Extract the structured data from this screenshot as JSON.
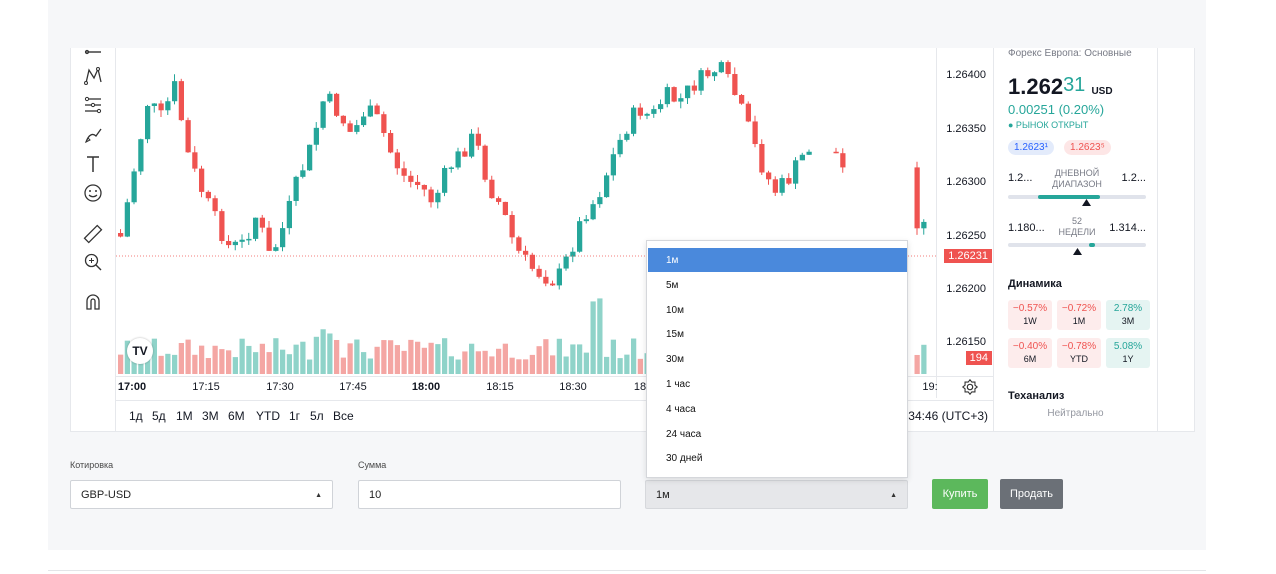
{
  "toolbar": {
    "icons": [
      "line-tool-icon",
      "pattern-tool-icon",
      "fib-tool-icon",
      "brush-tool-icon",
      "text-tool-icon",
      "emoji-tool-icon",
      "ruler-tool-icon",
      "zoom-in-icon",
      "magnet-icon"
    ]
  },
  "price_axis": {
    "labels": [
      "1.26400",
      "1.26350",
      "1.26300",
      "1.26250",
      "1.26200",
      "1.26150"
    ],
    "current_price_tag": "1.26231",
    "volume_tag": "194"
  },
  "time_axis": {
    "labels": [
      "17:00",
      "17:15",
      "17:30",
      "17:45",
      "18:00",
      "18:15",
      "18:30",
      "18",
      "19:"
    ]
  },
  "range_bar": {
    "buttons": [
      "1д",
      "5д",
      "1М",
      "3М",
      "6М",
      "YTD",
      "1г",
      "5л",
      "Все"
    ],
    "clock": "34:46 (UTC+3)"
  },
  "tv_logo": "TV",
  "side_panel": {
    "exchange": "Форекс Европа: Основные",
    "price_main": "1.262",
    "price_hi": "31",
    "currency": "USD",
    "change": "0.00251 (0.20%)",
    "market_status": "● РЫНОК ОТКРЫТ",
    "bid": "1.2623¹",
    "ask": "1.2623⁵",
    "daily_low": "1.2...",
    "daily_high": "1.2...",
    "daily_label_1": "ДНЕВНОЙ",
    "daily_label_2": "ДИАПАЗОН",
    "week_low": "1.180...",
    "week_high": "1.314...",
    "week_label_1": "52",
    "week_label_2": "НЕДЕЛИ",
    "dynamics_title": "Динамика",
    "performance": [
      {
        "value": "−0.57%",
        "period": "1W",
        "tone": "neg"
      },
      {
        "value": "−0.72%",
        "period": "1M",
        "tone": "neg"
      },
      {
        "value": "2.78%",
        "period": "3M",
        "tone": "pos"
      },
      {
        "value": "−0.40%",
        "period": "6M",
        "tone": "neg"
      },
      {
        "value": "−0.78%",
        "period": "YTD",
        "tone": "neg"
      },
      {
        "value": "5.08%",
        "period": "1Y",
        "tone": "pos"
      }
    ],
    "tech_title": "Теханализ",
    "tech_value": "Нейтрально"
  },
  "form": {
    "quote_label": "Котировка",
    "quote_value": "GBP-USD",
    "amount_label": "Сумма",
    "amount_value": "10",
    "period_value": "1м",
    "buy_label": "Купить",
    "sell_label": "Продать"
  },
  "period_dropdown": {
    "options": [
      "1м",
      "5м",
      "10м",
      "15м",
      "30м",
      "1 час",
      "4 часа",
      "24 часа",
      "30 дней"
    ],
    "selected": "1м"
  },
  "colors": {
    "up": "#26a69a",
    "down": "#ef5350",
    "vol_up": "#8fd3c9",
    "vol_down": "#f4a6a3",
    "selected_option": "#4a89dc",
    "buy": "#5cb85c",
    "sell": "#6b7077"
  }
}
